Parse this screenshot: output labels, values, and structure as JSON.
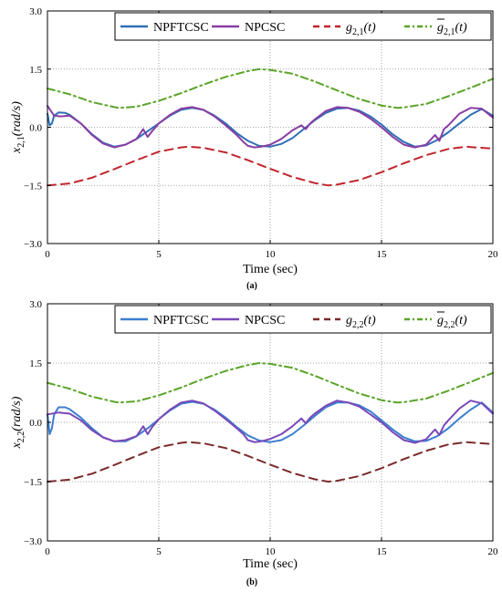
{
  "chart_data": [
    {
      "type": "line",
      "caption": "(a)",
      "xlabel": "Time (sec)",
      "ylabel": "x2,1(rad/s)",
      "ylabel_parts": {
        "var": "x",
        "sub": "2,1",
        "unit": "(rad/s)"
      },
      "xlim": [
        0,
        20
      ],
      "ylim": [
        -3.0,
        3.0
      ],
      "xticks": [
        0,
        5,
        10,
        15,
        20
      ],
      "xtick_labels": [
        "0",
        "5",
        "10",
        "15",
        "20"
      ],
      "yticks": [
        -3.0,
        -1.5,
        0.0,
        1.5,
        3.0
      ],
      "ytick_labels": [
        "−3.0",
        "−1.5",
        "0.0",
        "1.5",
        "3.0"
      ],
      "grid": true,
      "legend_position": "top-right",
      "series": [
        {
          "name": "NPFTCSC",
          "color": "#2e6fb6",
          "style": "solid",
          "x": [
            0,
            0.1,
            0.2,
            0.3,
            0.5,
            0.8,
            1.0,
            1.5,
            2.0,
            2.5,
            3.0,
            3.5,
            4.0,
            4.5,
            5.0,
            5.5,
            6.0,
            6.5,
            7.0,
            7.5,
            8.0,
            8.5,
            9.0,
            9.5,
            10.0,
            10.5,
            11.0,
            11.5,
            12.0,
            12.5,
            13.0,
            13.5,
            14.0,
            14.5,
            15.0,
            15.5,
            16.0,
            16.5,
            17.0,
            17.5,
            18.0,
            18.5,
            19.0,
            19.5,
            20.0
          ],
          "y": [
            0.35,
            0.05,
            0.1,
            0.3,
            0.38,
            0.37,
            0.32,
            0.1,
            -0.18,
            -0.4,
            -0.5,
            -0.45,
            -0.3,
            -0.1,
            0.1,
            0.3,
            0.45,
            0.5,
            0.45,
            0.3,
            0.1,
            -0.15,
            -0.35,
            -0.48,
            -0.5,
            -0.43,
            -0.28,
            -0.05,
            0.18,
            0.37,
            0.48,
            0.5,
            0.43,
            0.28,
            0.07,
            -0.18,
            -0.38,
            -0.5,
            -0.47,
            -0.33,
            -0.13,
            0.1,
            0.32,
            0.47,
            0.3
          ],
          "name_part": "NPFTCSC"
        },
        {
          "name": "NPCSC",
          "color": "#8a3ea3",
          "style": "solid",
          "x": [
            0,
            0.3,
            0.6,
            1.0,
            1.5,
            2.0,
            2.5,
            3.0,
            3.5,
            4.0,
            4.3,
            4.5,
            4.7,
            5.0,
            5.5,
            6.0,
            6.5,
            7.0,
            7.5,
            8.0,
            8.5,
            8.8,
            9.0,
            9.3,
            9.6,
            10.0,
            10.5,
            11.0,
            11.4,
            11.6,
            11.8,
            12.0,
            12.5,
            13.0,
            13.5,
            14.0,
            14.5,
            15.0,
            15.5,
            16.0,
            16.5,
            17.0,
            17.4,
            17.6,
            17.8,
            18.0,
            18.5,
            19.0,
            19.5,
            20.0
          ],
          "y": [
            0.55,
            0.3,
            0.28,
            0.3,
            0.1,
            -0.2,
            -0.42,
            -0.52,
            -0.45,
            -0.3,
            -0.05,
            -0.25,
            -0.1,
            0.1,
            0.32,
            0.48,
            0.52,
            0.45,
            0.28,
            0.05,
            -0.2,
            -0.38,
            -0.48,
            -0.52,
            -0.5,
            -0.45,
            -0.3,
            -0.08,
            0.05,
            -0.05,
            0.1,
            0.2,
            0.42,
            0.52,
            0.5,
            0.4,
            0.22,
            0.0,
            -0.25,
            -0.45,
            -0.52,
            -0.45,
            -0.2,
            -0.35,
            -0.05,
            0.05,
            0.35,
            0.5,
            0.48,
            0.25
          ],
          "name_part": "NPCSC"
        },
        {
          "name": "g2,1(t)",
          "name_parts": {
            "var": "g",
            "sub": "2,1",
            "arg": "(t)"
          },
          "color": "#c0262d",
          "style": "dashed",
          "x": [
            0,
            1,
            2,
            3,
            4,
            5,
            6,
            6.3,
            7,
            8,
            9,
            10,
            11,
            12,
            12.6,
            13,
            14,
            15,
            16,
            17,
            18,
            18.8,
            19,
            20
          ],
          "y": [
            -1.5,
            -1.45,
            -1.3,
            -1.08,
            -0.85,
            -0.63,
            -0.52,
            -0.5,
            -0.53,
            -0.65,
            -0.85,
            -1.07,
            -1.28,
            -1.44,
            -1.5,
            -1.48,
            -1.36,
            -1.16,
            -0.93,
            -0.72,
            -0.56,
            -0.5,
            -0.51,
            -0.55
          ]
        },
        {
          "name": "ḡ2,1(t)",
          "name_parts": {
            "var": "g",
            "bar": true,
            "sub": "2,1",
            "arg": "(t)"
          },
          "color": "#5aa428",
          "style": "dashdot",
          "x": [
            0,
            1,
            2,
            3,
            3.2,
            4,
            5,
            6,
            7,
            8,
            9,
            9.5,
            10,
            11,
            12,
            13,
            14,
            15,
            15.7,
            16,
            17,
            18,
            19,
            20
          ],
          "y": [
            1.0,
            0.85,
            0.65,
            0.52,
            0.5,
            0.53,
            0.68,
            0.88,
            1.1,
            1.3,
            1.45,
            1.5,
            1.48,
            1.38,
            1.18,
            0.95,
            0.73,
            0.56,
            0.5,
            0.51,
            0.6,
            0.8,
            1.02,
            1.25
          ]
        }
      ]
    },
    {
      "type": "line",
      "caption": "(b)",
      "xlabel": "Time (sec)",
      "ylabel": "x2,2(rad/s)",
      "ylabel_parts": {
        "var": "x",
        "sub": "2,2",
        "unit": "(rad/s)"
      },
      "xlim": [
        0,
        20
      ],
      "ylim": [
        -3.0,
        3.0
      ],
      "xticks": [
        0,
        5,
        10,
        15,
        20
      ],
      "xtick_labels": [
        "0",
        "5",
        "10",
        "15",
        "20"
      ],
      "yticks": [
        -3.0,
        -1.5,
        0.0,
        1.5,
        3.0
      ],
      "ytick_labels": [
        "−3.0",
        "−1.5",
        "0.0",
        "1.5",
        "3.0"
      ],
      "grid": true,
      "legend_position": "top-right",
      "series": [
        {
          "name": "NPFTCSC",
          "color": "#3b7fd0",
          "style": "solid",
          "x": [
            0,
            0.1,
            0.2,
            0.3,
            0.5,
            0.8,
            1.0,
            1.5,
            2.0,
            2.5,
            3.0,
            3.5,
            4.0,
            4.5,
            5.0,
            5.5,
            6.0,
            6.5,
            7.0,
            7.5,
            8.0,
            8.5,
            9.0,
            9.5,
            10.0,
            10.5,
            11.0,
            11.5,
            12.0,
            12.5,
            13.0,
            13.5,
            14.0,
            14.5,
            15.0,
            15.5,
            16.0,
            16.5,
            17.0,
            17.5,
            18.0,
            18.5,
            19.0,
            19.5,
            20.0
          ],
          "y": [
            0.2,
            -0.3,
            -0.15,
            0.2,
            0.38,
            0.38,
            0.33,
            0.12,
            -0.15,
            -0.38,
            -0.48,
            -0.48,
            -0.35,
            -0.15,
            0.08,
            0.3,
            0.47,
            0.52,
            0.47,
            0.32,
            0.12,
            -0.12,
            -0.33,
            -0.46,
            -0.5,
            -0.45,
            -0.3,
            -0.08,
            0.16,
            0.38,
            0.5,
            0.5,
            0.43,
            0.28,
            0.05,
            -0.18,
            -0.38,
            -0.48,
            -0.47,
            -0.35,
            -0.15,
            0.1,
            0.32,
            0.5,
            0.25
          ],
          "name_part": "NPFTCSC"
        },
        {
          "name": "NPCSC",
          "color": "#7a48b8",
          "style": "solid",
          "x": [
            0,
            0.5,
            1.0,
            1.5,
            2.0,
            2.5,
            3.0,
            3.5,
            4.0,
            4.3,
            4.5,
            4.7,
            5.0,
            5.5,
            6.0,
            6.5,
            7.0,
            7.5,
            8.0,
            8.5,
            8.8,
            9.0,
            9.3,
            9.6,
            10.0,
            10.5,
            11.0,
            11.4,
            11.6,
            11.8,
            12.0,
            12.5,
            13.0,
            13.5,
            14.0,
            14.5,
            15.0,
            15.5,
            16.0,
            16.5,
            17.0,
            17.4,
            17.6,
            17.8,
            18.0,
            18.5,
            19.0,
            19.5,
            20.0
          ],
          "y": [
            0.2,
            0.25,
            0.22,
            0.05,
            -0.2,
            -0.38,
            -0.48,
            -0.45,
            -0.35,
            -0.1,
            -0.3,
            -0.12,
            0.08,
            0.32,
            0.5,
            0.55,
            0.48,
            0.3,
            0.08,
            -0.15,
            -0.3,
            -0.45,
            -0.5,
            -0.48,
            -0.42,
            -0.3,
            -0.1,
            0.1,
            -0.02,
            0.12,
            0.22,
            0.42,
            0.55,
            0.5,
            0.4,
            0.2,
            0.0,
            -0.25,
            -0.45,
            -0.52,
            -0.43,
            -0.18,
            -0.32,
            -0.08,
            0.05,
            0.35,
            0.55,
            0.48,
            0.22
          ],
          "name_part": "NPCSC"
        },
        {
          "name": "g2,2(t)",
          "name_parts": {
            "var": "g",
            "sub": "2,2",
            "arg": "(t)"
          },
          "color": "#7a2a2a",
          "style": "dashed",
          "x": [
            0,
            1,
            2,
            3,
            4,
            5,
            6,
            6.3,
            7,
            8,
            9,
            10,
            11,
            12,
            12.6,
            13,
            14,
            15,
            16,
            17,
            18,
            18.8,
            19,
            20
          ],
          "y": [
            -1.5,
            -1.45,
            -1.3,
            -1.08,
            -0.85,
            -0.63,
            -0.52,
            -0.5,
            -0.53,
            -0.65,
            -0.85,
            -1.07,
            -1.28,
            -1.44,
            -1.5,
            -1.48,
            -1.36,
            -1.16,
            -0.93,
            -0.72,
            -0.56,
            -0.5,
            -0.51,
            -0.55
          ]
        },
        {
          "name": "ḡ2,2(t)",
          "name_parts": {
            "var": "g",
            "bar": true,
            "sub": "2,2",
            "arg": "(t)"
          },
          "color": "#5aa428",
          "style": "dashdot",
          "x": [
            0,
            1,
            2,
            3,
            3.2,
            4,
            5,
            6,
            7,
            8,
            9,
            9.5,
            10,
            11,
            12,
            13,
            14,
            15,
            15.7,
            16,
            17,
            18,
            19,
            20
          ],
          "y": [
            1.0,
            0.85,
            0.65,
            0.52,
            0.5,
            0.53,
            0.68,
            0.88,
            1.1,
            1.3,
            1.45,
            1.5,
            1.48,
            1.38,
            1.18,
            0.95,
            0.73,
            0.56,
            0.5,
            0.51,
            0.6,
            0.8,
            1.02,
            1.25
          ]
        }
      ]
    }
  ]
}
